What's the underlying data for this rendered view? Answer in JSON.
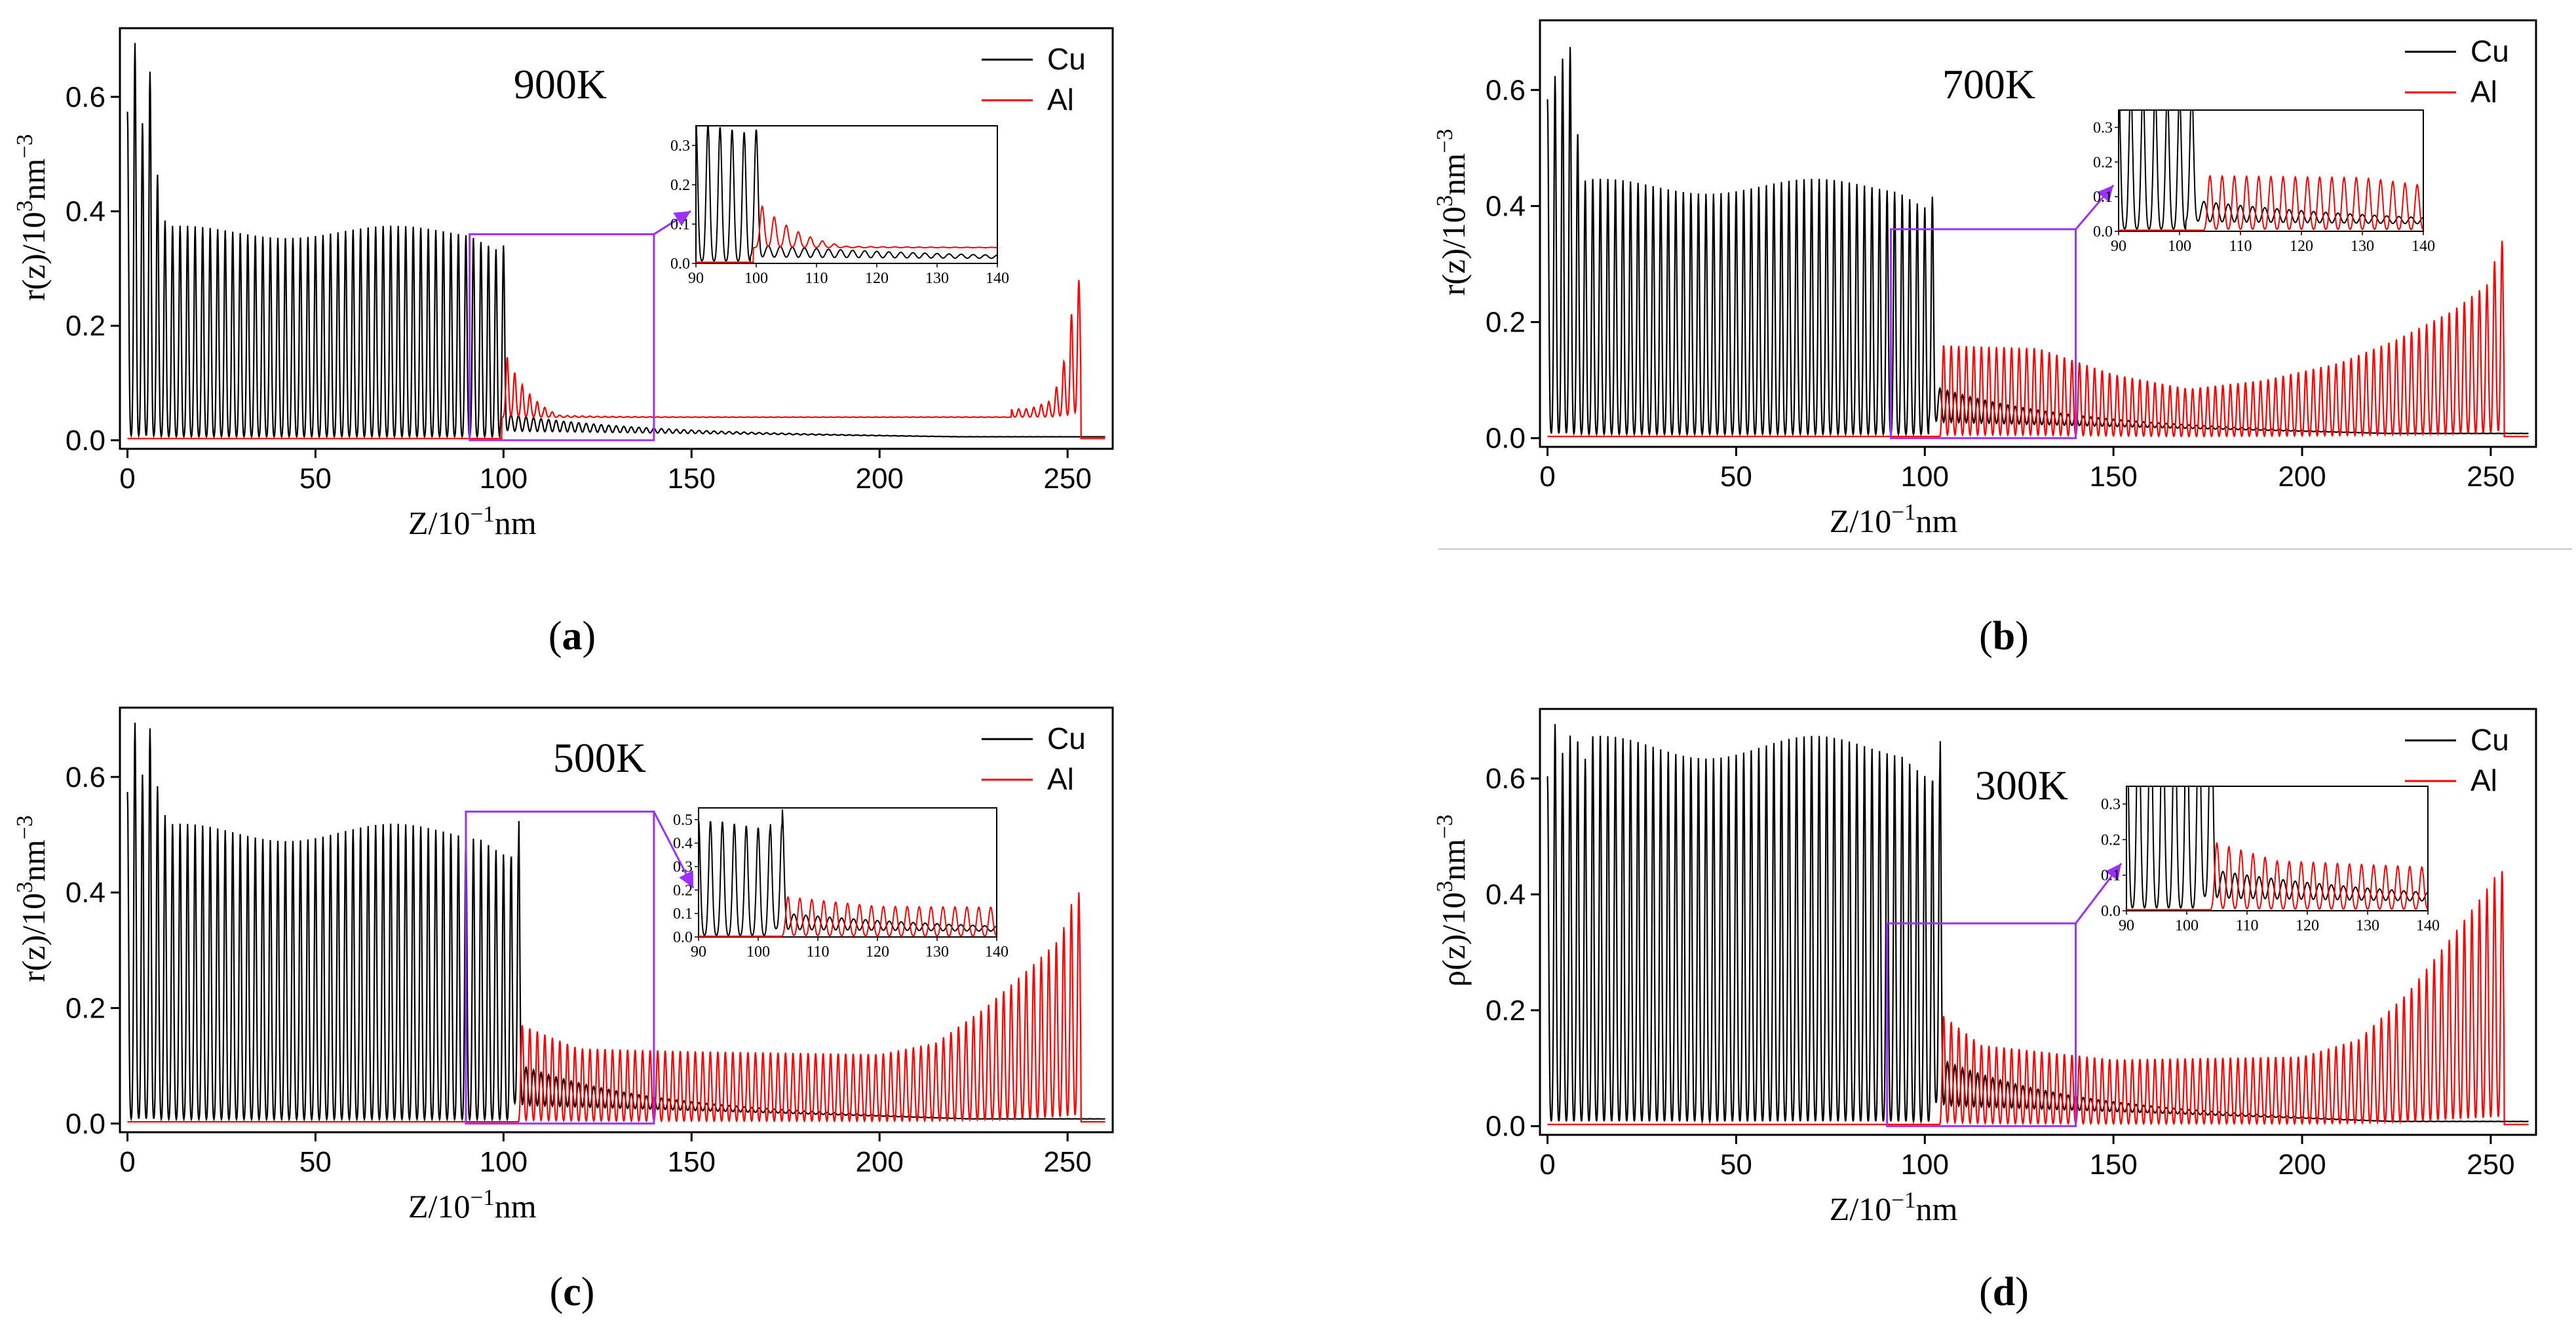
{
  "colors": {
    "cu": "#000000",
    "al": "#ff0000",
    "highlight": "#9b30ff"
  },
  "chart_data": [
    {
      "type": "line",
      "panel": "a",
      "title": "900K",
      "caption": {
        "open": "(",
        "letter": "a",
        "close": ")"
      },
      "xlabel": "Z/10",
      "xlabel_sup": "−1",
      "xlabel_unit": "nm",
      "ylabel": "r(z)/10",
      "ylabel_sup": "3",
      "ylabel_unit": "nm",
      "ylabel_sup2": "−3",
      "xlim": [
        -2,
        262
      ],
      "ylim": [
        -0.015,
        0.72
      ],
      "xticks": [
        0,
        50,
        100,
        150,
        200,
        250
      ],
      "xtick_labels": [
        "0",
        "50",
        "100",
        "150",
        "200",
        "250"
      ],
      "yticks": [
        0.0,
        0.2,
        0.4,
        0.6
      ],
      "ytick_labels": [
        "0.0",
        "0.2",
        "0.4",
        "0.6"
      ],
      "series": [
        {
          "name": "Cu",
          "cu_peak_early": [
            0.57,
            0.69,
            0.55,
            0.64,
            0.46,
            0.38
          ],
          "cu_plateau": 0.36,
          "cu_end": 101,
          "cu_tail_start": 0.03,
          "cu_tail_end": 0.005
        },
        {
          "name": "Al",
          "al_start": 101,
          "al_start_amp": 0.14,
          "al_profile": [
            [
              101,
              0.14
            ],
            [
              115,
              0.05
            ],
            [
              240,
              0.055
            ],
            [
              246,
              0.07
            ],
            [
              250,
              0.16
            ],
            [
              252,
              0.28
            ]
          ],
          "al_baseline": 0.04,
          "al_end": 253
        }
      ],
      "inset": {
        "xlim": [
          90,
          140
        ],
        "ylim": [
          0,
          0.35
        ],
        "xticks": [
          90,
          100,
          110,
          120,
          130,
          140
        ],
        "xtick_labels": [
          "90",
          "100",
          "110",
          "120",
          "130",
          "140"
        ],
        "yticks": [
          0.0,
          0.1,
          0.2,
          0.3
        ],
        "ytick_labels": [
          "0.0",
          "0.1",
          "0.2",
          "0.3"
        ],
        "zoom_box": {
          "x": [
            91,
            140
          ],
          "y": [
            0,
            0.36
          ]
        }
      }
    },
    {
      "type": "line",
      "panel": "b",
      "title": "700K",
      "caption": {
        "open": "(",
        "letter": "b",
        "close": ")"
      },
      "xlabel": "Z/10",
      "xlabel_sup": "−1",
      "xlabel_unit": "nm",
      "ylabel": "r(z)/10",
      "ylabel_sup": "3",
      "ylabel_unit": "nm",
      "ylabel_sup2": "−3",
      "xlim": [
        -2,
        262
      ],
      "ylim": [
        -0.015,
        0.72
      ],
      "xticks": [
        0,
        50,
        100,
        150,
        200,
        250
      ],
      "xtick_labels": [
        "0",
        "50",
        "100",
        "150",
        "200",
        "250"
      ],
      "yticks": [
        0.0,
        0.2,
        0.4,
        0.6
      ],
      "ytick_labels": [
        "0.0",
        "0.2",
        "0.4",
        "0.6"
      ],
      "series": [
        {
          "name": "Cu",
          "cu_peak_early": [
            0.58,
            0.62,
            0.65,
            0.67,
            0.52,
            0.44
          ],
          "cu_plateau": 0.43,
          "cu_end": 103,
          "cu_tail_start": 0.06,
          "cu_tail_end": 0.01
        },
        {
          "name": "Al",
          "al_start": 104,
          "al_start_amp": 0.16,
          "al_profile": [
            [
              104,
              0.16
            ],
            [
              130,
              0.155
            ],
            [
              150,
              0.11
            ],
            [
              170,
              0.085
            ],
            [
              190,
              0.1
            ],
            [
              210,
              0.13
            ],
            [
              225,
              0.17
            ],
            [
              240,
              0.22
            ],
            [
              250,
              0.27
            ],
            [
              252,
              0.34
            ]
          ],
          "al_baseline": 0.0,
          "al_end": 253
        }
      ],
      "inset": {
        "xlim": [
          90,
          140
        ],
        "ylim": [
          0,
          0.35
        ],
        "xticks": [
          90,
          100,
          110,
          120,
          130,
          140
        ],
        "xtick_labels": [
          "90",
          "100",
          "110",
          "120",
          "130",
          "140"
        ],
        "yticks": [
          0.0,
          0.1,
          0.2,
          0.3
        ],
        "ytick_labels": [
          "0.0",
          "0.1",
          "0.2",
          "0.3"
        ],
        "zoom_box": {
          "x": [
            91,
            140
          ],
          "y": [
            0,
            0.36
          ]
        }
      }
    },
    {
      "type": "line",
      "panel": "c",
      "title": "500K",
      "caption": {
        "open": "(",
        "letter": "c",
        "close": ")"
      },
      "xlabel": "Z/10",
      "xlabel_sup": "−1",
      "xlabel_unit": "nm",
      "ylabel": "r(z)/10",
      "ylabel_sup": "3",
      "ylabel_unit": "nm",
      "ylabel_sup2": "−3",
      "xlim": [
        -2,
        262
      ],
      "ylim": [
        -0.015,
        0.72
      ],
      "xticks": [
        0,
        50,
        100,
        150,
        200,
        250
      ],
      "xtick_labels": [
        "0",
        "50",
        "100",
        "150",
        "200",
        "250"
      ],
      "yticks": [
        0.0,
        0.2,
        0.4,
        0.6
      ],
      "ytick_labels": [
        "0.0",
        "0.2",
        "0.4",
        "0.6"
      ],
      "series": [
        {
          "name": "Cu",
          "cu_peak_early": [
            0.57,
            0.69,
            0.6,
            0.68,
            0.58,
            0.53
          ],
          "cu_plateau": 0.5,
          "cu_end": 104,
          "cu_tail_start": 0.07,
          "cu_tail_end": 0.01
        },
        {
          "name": "Al",
          "al_start": 105,
          "al_start_amp": 0.17,
          "al_profile": [
            [
              105,
              0.17
            ],
            [
              120,
              0.13
            ],
            [
              150,
              0.125
            ],
            [
              200,
              0.12
            ],
            [
              215,
              0.14
            ],
            [
              228,
              0.2
            ],
            [
              240,
              0.27
            ],
            [
              248,
              0.32
            ],
            [
              252,
              0.4
            ]
          ],
          "al_baseline": 0.0,
          "al_end": 253
        }
      ],
      "inset": {
        "xlim": [
          90,
          140
        ],
        "ylim": [
          0,
          0.55
        ],
        "xticks": [
          90,
          100,
          110,
          120,
          130,
          140
        ],
        "xtick_labels": [
          "90",
          "100",
          "110",
          "120",
          "130",
          "140"
        ],
        "yticks": [
          0.0,
          0.1,
          0.2,
          0.3,
          0.4,
          0.5
        ],
        "ytick_labels": [
          "0.0",
          "0.1",
          "0.2",
          "0.3",
          "0.4",
          "0.5"
        ],
        "zoom_box": {
          "x": [
            90,
            140
          ],
          "y": [
            0,
            0.54
          ]
        }
      }
    },
    {
      "type": "line",
      "panel": "d",
      "title": "300K",
      "caption": {
        "open": "(",
        "letter": "d",
        "close": ")"
      },
      "xlabel": "Z/10",
      "xlabel_sup": "−1",
      "xlabel_unit": "nm",
      "ylabel": "ρ(z)/10",
      "ylabel_sup": "3",
      "ylabel_unit": "nm",
      "ylabel_sup2": "−3",
      "xlim": [
        -2,
        262
      ],
      "ylim": [
        -0.015,
        0.72
      ],
      "xticks": [
        0,
        50,
        100,
        150,
        200,
        250
      ],
      "xtick_labels": [
        "0",
        "50",
        "100",
        "150",
        "200",
        "250"
      ],
      "yticks": [
        0.0,
        0.2,
        0.4,
        0.6
      ],
      "ytick_labels": [
        "0.0",
        "0.2",
        "0.4",
        "0.6"
      ],
      "series": [
        {
          "name": "Cu",
          "cu_peak_early": [
            0.6,
            0.69,
            0.64,
            0.67,
            0.66,
            0.63
          ],
          "cu_plateau": 0.65,
          "cu_end": 104,
          "cu_tail_start": 0.08,
          "cu_tail_end": 0.01
        },
        {
          "name": "Al",
          "al_start": 105,
          "al_start_amp": 0.19,
          "al_profile": [
            [
              105,
              0.19
            ],
            [
              115,
              0.14
            ],
            [
              150,
              0.115
            ],
            [
              200,
              0.12
            ],
            [
              215,
              0.15
            ],
            [
              228,
              0.23
            ],
            [
              240,
              0.33
            ],
            [
              248,
              0.4
            ],
            [
              252,
              0.44
            ]
          ],
          "al_baseline": 0.0,
          "al_end": 253
        }
      ],
      "inset": {
        "xlim": [
          90,
          140
        ],
        "ylim": [
          0,
          0.35
        ],
        "xticks": [
          90,
          100,
          110,
          120,
          130,
          140
        ],
        "xtick_labels": [
          "90",
          "100",
          "110",
          "120",
          "130",
          "140"
        ],
        "yticks": [
          0.0,
          0.1,
          0.2,
          0.3
        ],
        "ytick_labels": [
          "0.0",
          "0.1",
          "0.2",
          "0.3"
        ],
        "zoom_box": {
          "x": [
            90,
            140
          ],
          "y": [
            0,
            0.35
          ]
        }
      }
    }
  ]
}
